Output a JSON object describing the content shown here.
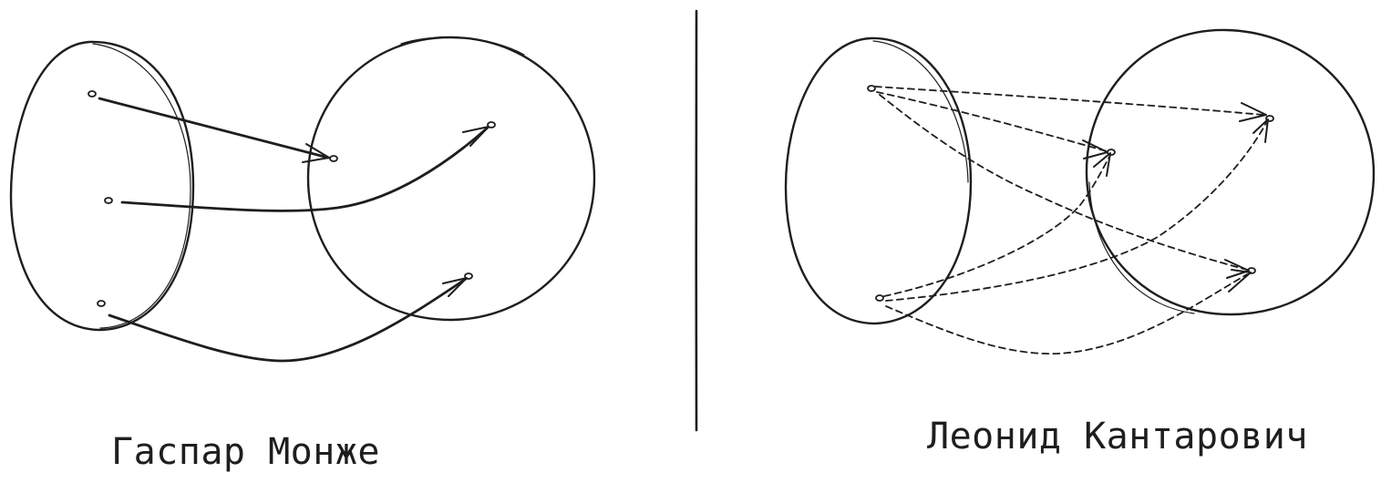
{
  "left_panel": {
    "caption": "Гаспар Монже"
  },
  "right_panel": {
    "caption": "Леонид Кантарович"
  },
  "colors": {
    "ink": "#1e1e1e",
    "background": "#ffffff"
  }
}
